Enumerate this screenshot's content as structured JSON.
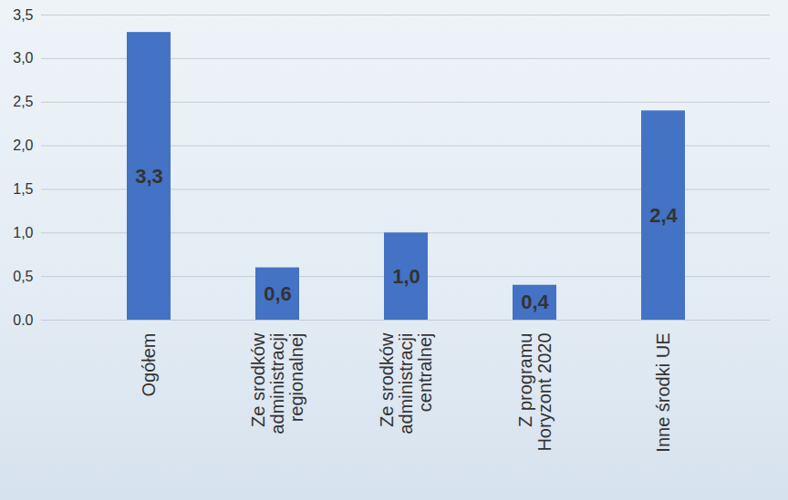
{
  "chart_data": {
    "type": "bar",
    "categories": [
      "Ogółem",
      "Ze srodków administracji regionalnej",
      "Ze srodków administracji centralnej",
      "Z programu Horyzont 2020",
      "Inne środki UE"
    ],
    "values": [
      3.3,
      0.6,
      1.0,
      0.4,
      2.4
    ],
    "value_labels": [
      "3,3",
      "0,6",
      "1,0",
      "0,4",
      "2,4"
    ],
    "color": "#4472c4",
    "ylim": [
      0,
      3.5
    ],
    "yticks": [
      {
        "value": 0,
        "label": "0.0"
      },
      {
        "value": 0.5,
        "label": "0,5"
      },
      {
        "value": 1.0,
        "label": "1,0"
      },
      {
        "value": 1.5,
        "label": "1,5"
      },
      {
        "value": 2.0,
        "label": "2,0"
      },
      {
        "value": 2.5,
        "label": "2,5"
      },
      {
        "value": 3.0,
        "label": "3,0"
      },
      {
        "value": 3.5,
        "label": "3,5"
      }
    ],
    "grid": true,
    "data_labels": true
  }
}
